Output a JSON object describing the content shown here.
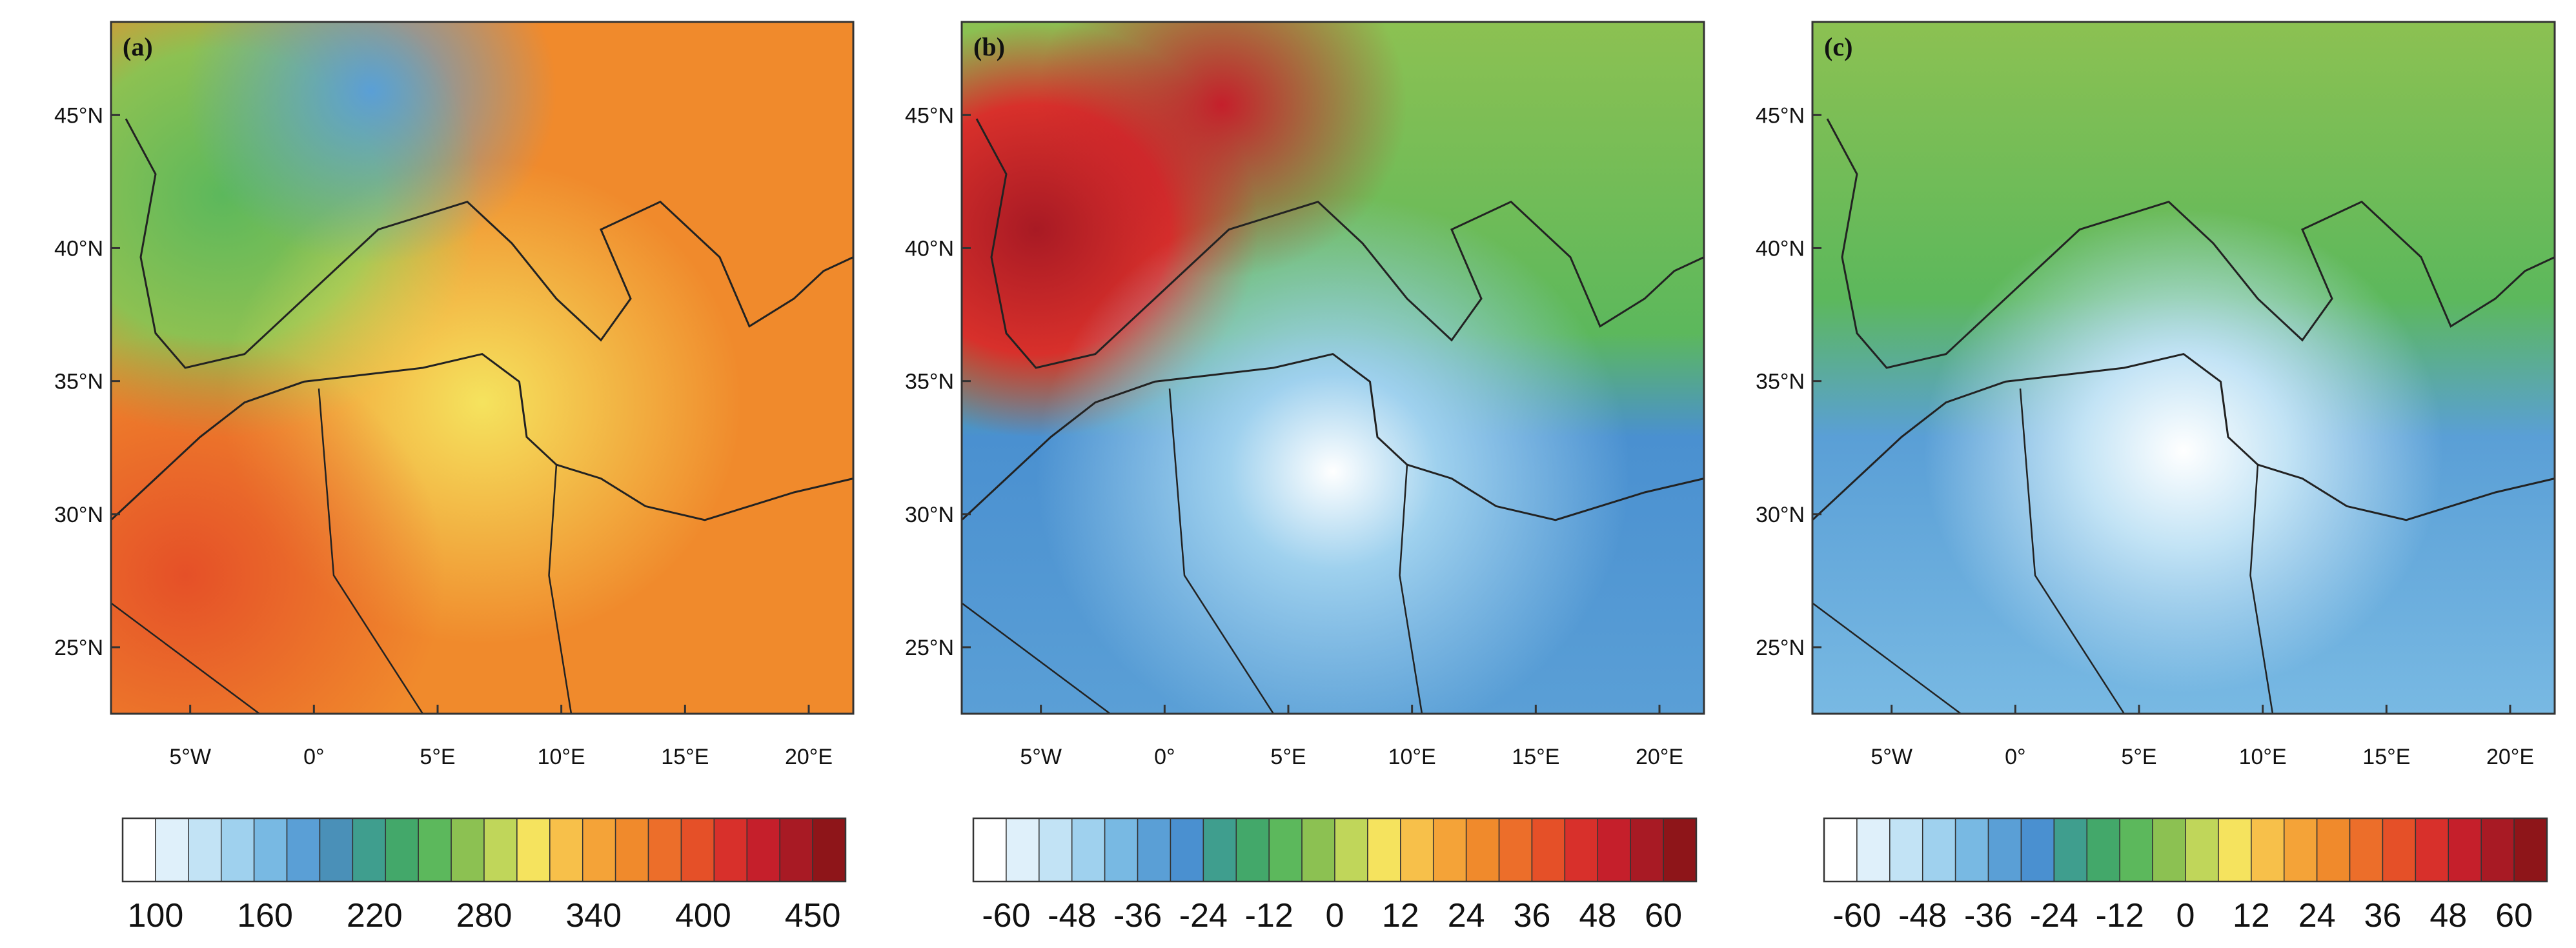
{
  "panels": [
    {
      "label": "(a)",
      "lon_ticks": [
        "5°W",
        "0°",
        "5°E",
        "10°E",
        "15°E",
        "20°E"
      ],
      "lat_ticks": [
        "45°N",
        "40°N",
        "35°N",
        "30°N",
        "25°N"
      ],
      "colorbar_labels": [
        "100",
        "160",
        "220",
        "280",
        "340",
        "400",
        "450"
      ],
      "colorbar_colors": [
        "#ffffff",
        "#dff0fa",
        "#c2e3f5",
        "#9fd1ee",
        "#78b9e3",
        "#5a9fd6",
        "#4a90b8",
        "#3f9e8e",
        "#43a86a",
        "#5cb85c",
        "#8cc152",
        "#c0d65a",
        "#f5e35e",
        "#f7c04a",
        "#f4a338",
        "#f08a2c",
        "#ec6e2a",
        "#e55028",
        "#d8302b",
        "#c51f2b",
        "#a81a24",
        "#8e1519"
      ],
      "fill_color": "#f08a2c"
    },
    {
      "label": "(b)",
      "lon_ticks": [
        "5°W",
        "0°",
        "5°E",
        "10°E",
        "15°E",
        "20°E"
      ],
      "lat_ticks": [
        "45°N",
        "40°N",
        "35°N",
        "30°N",
        "25°N"
      ],
      "colorbar_labels": [
        "-60",
        "-48",
        "-36",
        "-24",
        "-12",
        "0",
        "12",
        "24",
        "36",
        "48",
        "60"
      ],
      "colorbar_colors": [
        "#ffffff",
        "#dff0fa",
        "#c2e3f5",
        "#9fd1ee",
        "#78b9e3",
        "#5a9fd6",
        "#4a90d0",
        "#3f9e8e",
        "#43a86a",
        "#5cb85c",
        "#8cc152",
        "#c0d65a",
        "#f5e35e",
        "#f7c04a",
        "#f4a338",
        "#f08a2c",
        "#ec6e2a",
        "#e55028",
        "#d8302b",
        "#c51f2b",
        "#a81a24",
        "#8e1519"
      ],
      "fill_color": "#4a90d0"
    },
    {
      "label": "(c)",
      "lon_ticks": [
        "5°W",
        "0°",
        "5°E",
        "10°E",
        "15°E",
        "20°E"
      ],
      "lat_ticks": [
        "45°N",
        "40°N",
        "35°N",
        "30°N",
        "25°N"
      ],
      "colorbar_labels": [
        "-60",
        "-48",
        "-36",
        "-24",
        "-12",
        "0",
        "12",
        "24",
        "36",
        "48",
        "60"
      ],
      "colorbar_colors": [
        "#ffffff",
        "#dff0fa",
        "#c2e3f5",
        "#9fd1ee",
        "#78b9e3",
        "#5a9fd6",
        "#4a90d0",
        "#3f9e8e",
        "#43a86a",
        "#5cb85c",
        "#8cc152",
        "#c0d65a",
        "#f5e35e",
        "#f7c04a",
        "#f4a338",
        "#f08a2c",
        "#ec6e2a",
        "#e55028",
        "#d8302b",
        "#c51f2b",
        "#a81a24",
        "#8e1519"
      ],
      "fill_color": "#5a9fd6"
    }
  ]
}
